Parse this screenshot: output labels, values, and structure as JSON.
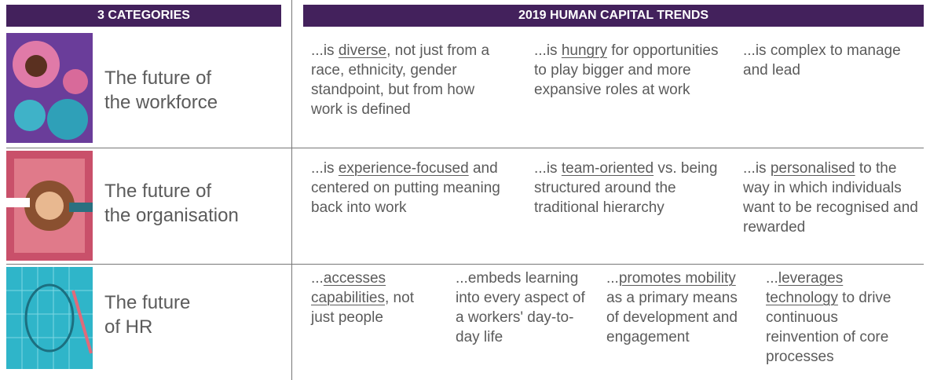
{
  "header": {
    "left": "3 CATEGORIES",
    "right": "2019 HUMAN CAPITAL TRENDS"
  },
  "rows": [
    {
      "category": [
        "The future of",
        "the workforce"
      ],
      "trends": [
        [
          {
            "text": "...is "
          },
          {
            "text": "diverse",
            "underline": true
          },
          {
            "text": ", not just from a race, ethnicity, gender standpoint, but from how work is defined"
          }
        ],
        [
          {
            "text": "...is "
          },
          {
            "text": "hungry",
            "underline": true
          },
          {
            "text": " for opportunities to play bigger and more expansive roles at work"
          }
        ],
        [
          {
            "text": "...is complex to manage and lead"
          }
        ]
      ]
    },
    {
      "category": [
        "The future of",
        "the organisation"
      ],
      "trends": [
        [
          {
            "text": "...is "
          },
          {
            "text": "experience-focused",
            "underline": true
          },
          {
            "text": " and centered on putting meaning back into work"
          }
        ],
        [
          {
            "text": "...is "
          },
          {
            "text": "team-oriented",
            "underline": true
          },
          {
            "text": " vs. being structured around the traditional hierarchy"
          }
        ],
        [
          {
            "text": "...is "
          },
          {
            "text": "personalised",
            "underline": true
          },
          {
            "text": " to the way in which individuals want to be recognised and rewarded"
          }
        ]
      ]
    },
    {
      "category": [
        "The future",
        "of HR"
      ],
      "trends": [
        [
          {
            "text": "..."
          },
          {
            "text": "accesses capabilities",
            "underline": true
          },
          {
            "text": ", not just people"
          }
        ],
        [
          {
            "text": "...embeds learning into every aspect of a workers' day-to-day life"
          }
        ],
        [
          {
            "text": "..."
          },
          {
            "text": "promotes mobility",
            "underline": true
          },
          {
            "text": " as a primary means of development and engagement"
          }
        ],
        [
          {
            "text": "..."
          },
          {
            "text": "leverages technology",
            "underline": true
          },
          {
            "text": " to drive continuous reinvention of core processes"
          }
        ]
      ]
    }
  ]
}
